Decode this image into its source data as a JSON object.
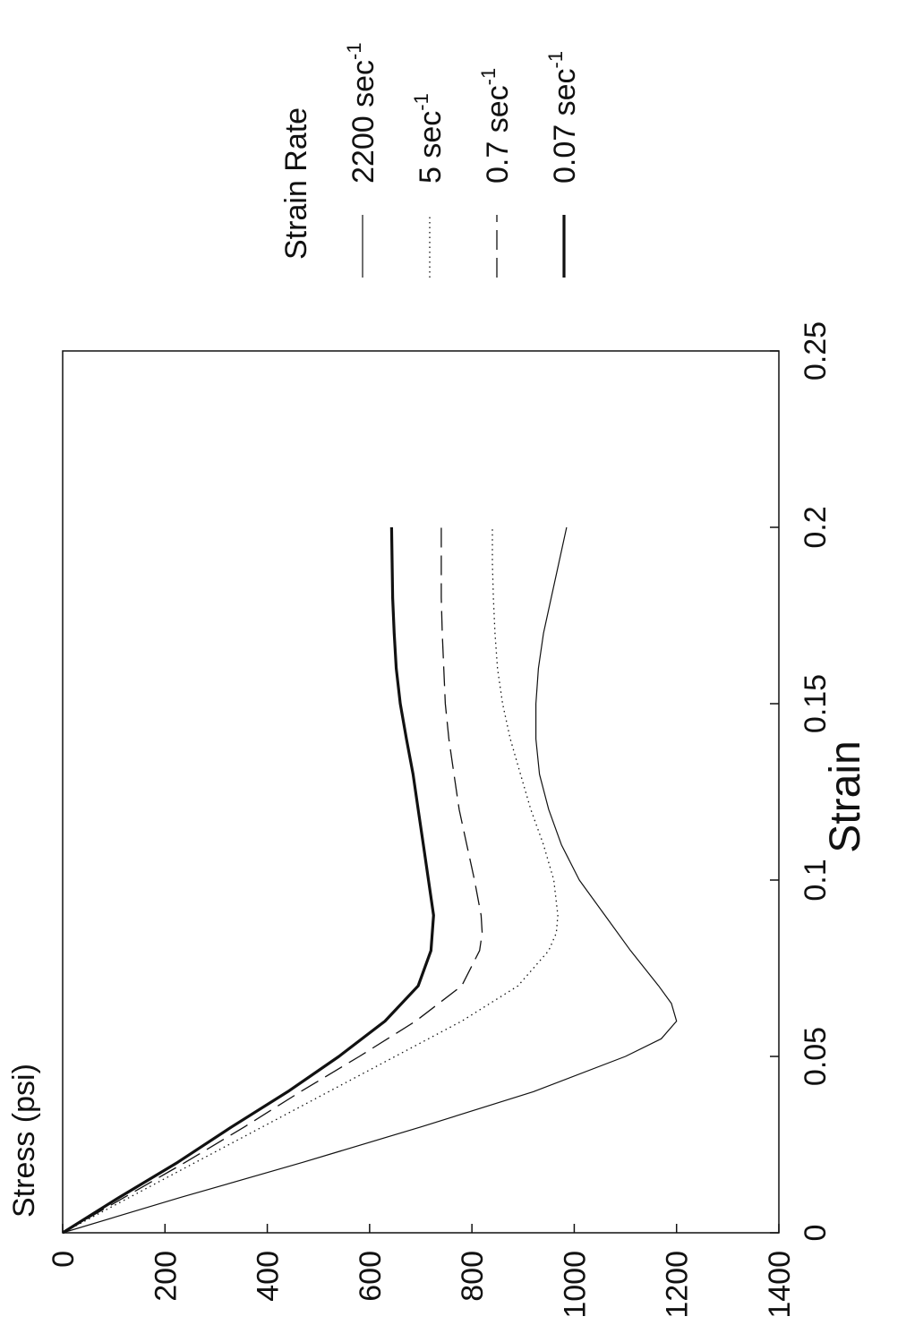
{
  "chart_data": {
    "type": "line",
    "xlabel": "Strain",
    "ylabel": "Stress (psi)",
    "xlim": [
      0,
      0.25
    ],
    "ylim": [
      0,
      1400
    ],
    "xticks": [
      "0",
      "0.05",
      "0.1",
      "0.15",
      "0.2",
      "0.25"
    ],
    "yticks": [
      "0",
      "200",
      "400",
      "600",
      "800",
      "1000",
      "1200",
      "1400"
    ],
    "grid": false,
    "legend_title": "Strain Rate",
    "legend_position": "right",
    "series": [
      {
        "name": "2200 sec",
        "superscript": "-1",
        "style": "solid-thin",
        "x": [
          0,
          0.01,
          0.02,
          0.03,
          0.04,
          0.05,
          0.055,
          0.06,
          0.065,
          0.07,
          0.08,
          0.09,
          0.1,
          0.11,
          0.12,
          0.13,
          0.14,
          0.15,
          0.16,
          0.17,
          0.18,
          0.19,
          0.2
        ],
        "y": [
          0,
          230,
          470,
          700,
          920,
          1100,
          1170,
          1200,
          1190,
          1165,
          1110,
          1060,
          1010,
          975,
          950,
          932,
          925,
          925,
          930,
          940,
          955,
          970,
          985
        ]
      },
      {
        "name": "5 sec",
        "superscript": "-1",
        "style": "dotted",
        "x": [
          0,
          0.01,
          0.02,
          0.03,
          0.04,
          0.05,
          0.06,
          0.07,
          0.08,
          0.085,
          0.09,
          0.1,
          0.11,
          0.12,
          0.13,
          0.14,
          0.15,
          0.16,
          0.17,
          0.18,
          0.19,
          0.2
        ],
        "y": [
          0,
          130,
          260,
          390,
          520,
          650,
          780,
          890,
          950,
          965,
          968,
          960,
          940,
          915,
          895,
          875,
          860,
          850,
          845,
          842,
          840,
          840
        ]
      },
      {
        "name": "0.7 sec",
        "superscript": "-1",
        "style": "dashed",
        "x": [
          0,
          0.01,
          0.02,
          0.03,
          0.04,
          0.05,
          0.06,
          0.07,
          0.08,
          0.085,
          0.09,
          0.1,
          0.11,
          0.12,
          0.13,
          0.14,
          0.15,
          0.16,
          0.17,
          0.18,
          0.19,
          0.2
        ],
        "y": [
          0,
          120,
          240,
          355,
          465,
          580,
          690,
          780,
          815,
          820,
          818,
          805,
          790,
          775,
          765,
          755,
          748,
          745,
          742,
          740,
          740,
          740
        ]
      },
      {
        "name": "0.07 sec",
        "superscript": "-1",
        "style": "solid-thick",
        "x": [
          0,
          0.01,
          0.02,
          0.03,
          0.04,
          0.05,
          0.06,
          0.07,
          0.08,
          0.09,
          0.1,
          0.11,
          0.12,
          0.13,
          0.14,
          0.15,
          0.16,
          0.17,
          0.18,
          0.19,
          0.2
        ],
        "y": [
          0,
          110,
          225,
          330,
          440,
          540,
          630,
          695,
          720,
          725,
          715,
          705,
          695,
          685,
          672,
          660,
          652,
          648,
          645,
          644,
          643
        ]
      }
    ]
  }
}
